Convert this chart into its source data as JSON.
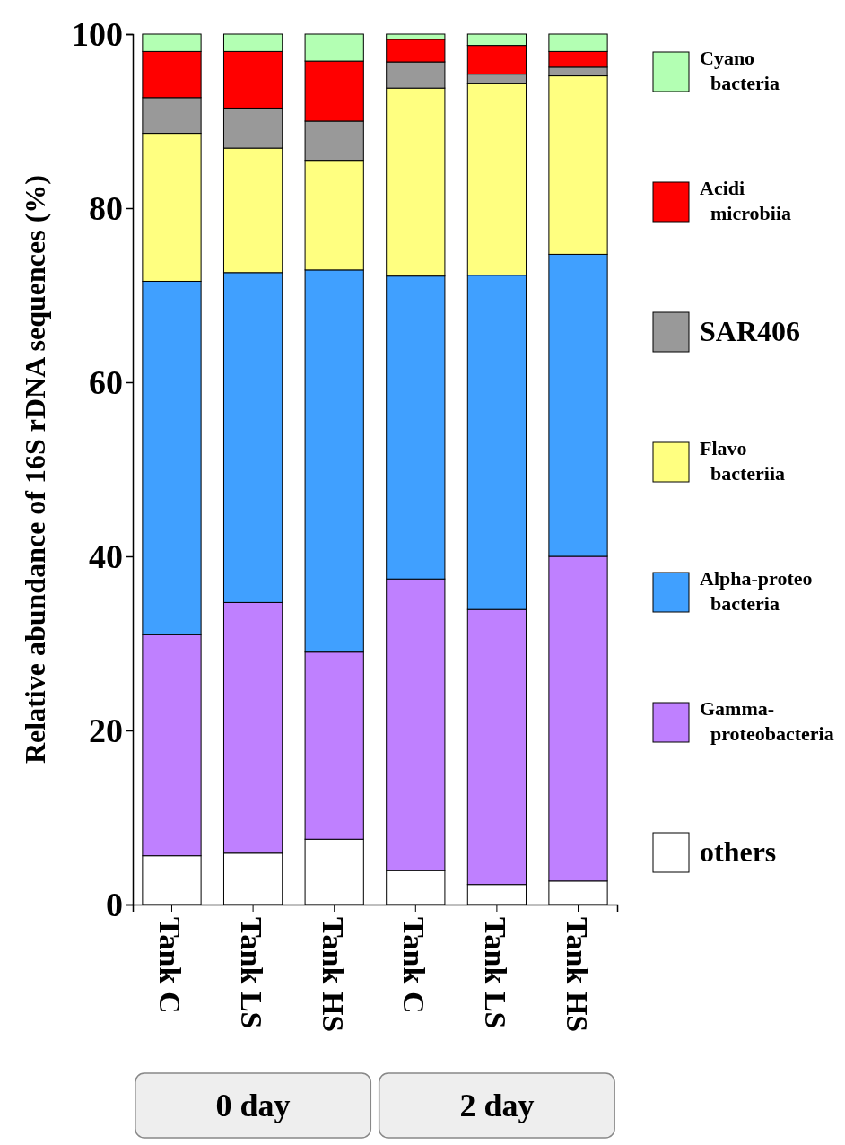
{
  "chart_data": {
    "type": "bar",
    "stacked": true,
    "ylabel": "Relative abundance of 16S rDNA sequences   (%)",
    "categories": [
      "Tank C",
      "Tank LS",
      "Tank HS",
      "Tank C",
      "Tank LS",
      "Tank HS"
    ],
    "ylim": [
      0,
      100
    ],
    "yticks": [
      0,
      20,
      40,
      60,
      80,
      100
    ],
    "grid": false,
    "legend": "right",
    "annotations": [
      "0 day",
      "2 day"
    ],
    "series": [
      {
        "name": "others",
        "color": "#ffffff",
        "values": [
          5.6,
          5.9,
          7.5,
          3.9,
          2.3,
          2.7
        ]
      },
      {
        "name": "Gamma- proteobacteria",
        "color": "#bf80ff",
        "values": [
          25.4,
          28.8,
          21.5,
          33.5,
          31.6,
          37.3
        ]
      },
      {
        "name": "Alpha-proteo bacteria",
        "color": "#40a0ff",
        "values": [
          40.6,
          37.9,
          43.9,
          34.8,
          38.4,
          34.7
        ]
      },
      {
        "name": "Flavo bacteriia",
        "color": "#ffff80",
        "values": [
          17.0,
          14.3,
          12.6,
          21.6,
          22.0,
          20.5
        ]
      },
      {
        "name": "SAR406",
        "color": "#999999",
        "values": [
          4.1,
          4.6,
          4.5,
          3.0,
          1.1,
          1.0
        ]
      },
      {
        "name": "Acidi microbiia",
        "color": "#ff0000",
        "values": [
          5.3,
          6.5,
          6.9,
          2.6,
          3.3,
          1.8
        ]
      },
      {
        "name": "Cyano bacteria",
        "color": "#b3ffb3",
        "values": [
          2.0,
          2.0,
          3.1,
          0.6,
          1.3,
          2.0
        ]
      }
    ]
  }
}
